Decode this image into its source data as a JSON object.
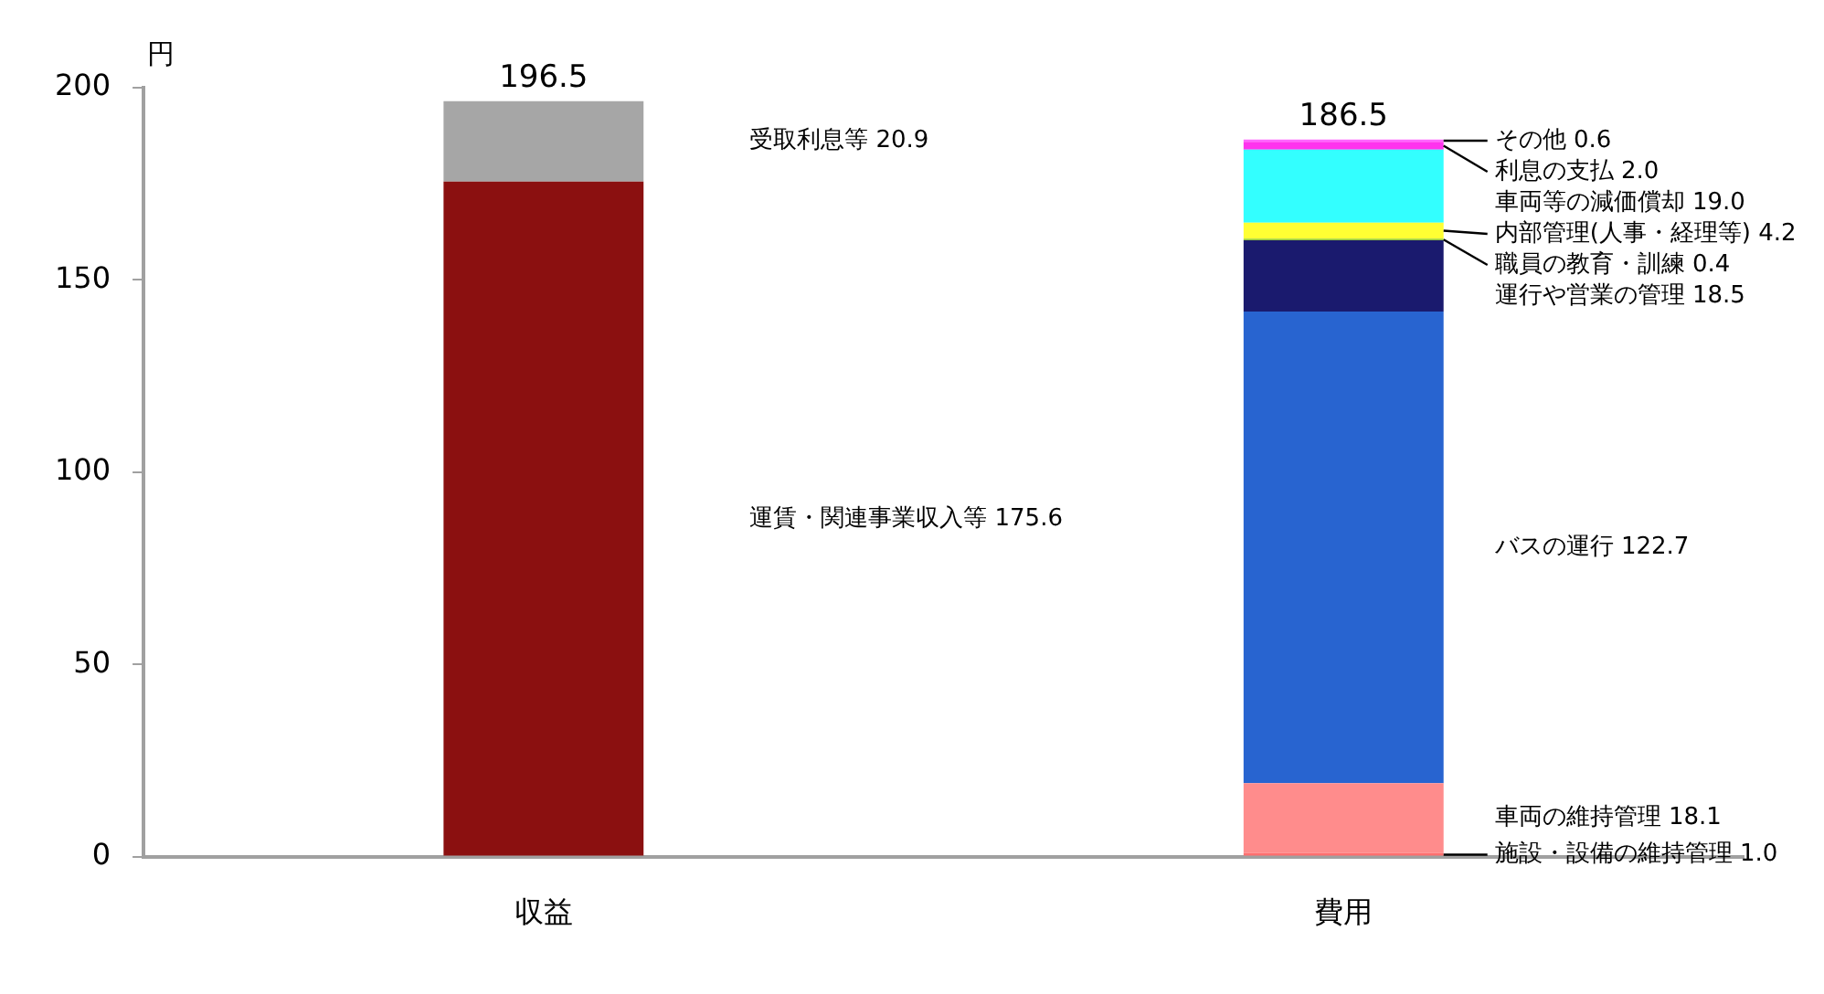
{
  "chart_data": {
    "type": "bar",
    "stacked": true,
    "ylabel": "円",
    "categories": [
      "収益",
      "費用"
    ],
    "series": [
      {
        "name": "運賃・関連事業収入等",
        "color": "#8b1010",
        "values": [
          175.6,
          null
        ],
        "value_labels": [
          "175.6",
          null
        ]
      },
      {
        "name": "受取利息等",
        "color": "#a6a6a6",
        "values": [
          20.9,
          null
        ],
        "value_labels": [
          "20.9",
          null
        ]
      },
      {
        "name": "施設・設備の維持管理",
        "color": "#ff6f6f",
        "values": [
          null,
          1.0
        ],
        "value_labels": [
          null,
          "1.0"
        ]
      },
      {
        "name": "車両の維持管理",
        "color": "#ff8c8c",
        "values": [
          null,
          18.1
        ],
        "value_labels": [
          null,
          "18.1"
        ]
      },
      {
        "name": "バスの運行",
        "color": "#2864d0",
        "values": [
          null,
          122.7
        ],
        "value_labels": [
          null,
          "122.7"
        ]
      },
      {
        "name": "運行や営業の管理",
        "color": "#1a1a6e",
        "values": [
          null,
          18.5
        ],
        "value_labels": [
          null,
          "18.5"
        ]
      },
      {
        "name": "職員の教育・訓練",
        "color": "#99cc33",
        "values": [
          null,
          0.4
        ],
        "value_labels": [
          null,
          "0.4"
        ]
      },
      {
        "name": "内部管理(人事・経理等)",
        "color": "#ffff33",
        "values": [
          null,
          4.2
        ],
        "value_labels": [
          null,
          "4.2"
        ]
      },
      {
        "name": "車両等の減価償却",
        "color": "#33ffff",
        "values": [
          null,
          19.0
        ],
        "value_labels": [
          null,
          "19.0"
        ]
      },
      {
        "name": "利息の支払",
        "color": "#ff33ee",
        "values": [
          null,
          2.0
        ],
        "value_labels": [
          null,
          "2.0"
        ]
      },
      {
        "name": "その他",
        "color": "#ff66ff",
        "values": [
          null,
          0.6
        ],
        "value_labels": [
          null,
          "0.6"
        ]
      }
    ],
    "totals": [
      "196.5",
      "186.5"
    ],
    "ylim": [
      0,
      200
    ],
    "yticks": [
      0,
      50,
      100,
      150,
      200
    ],
    "grid": false,
    "legend": false
  }
}
